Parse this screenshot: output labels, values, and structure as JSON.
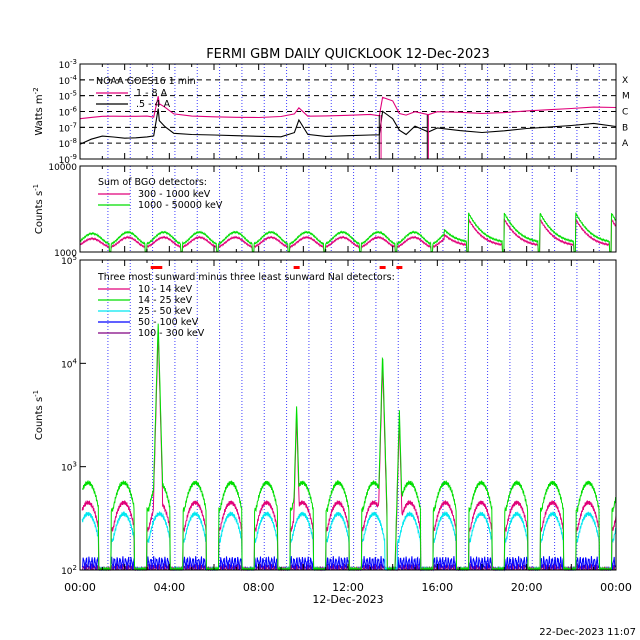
{
  "title": "FERMI GBM DAILY QUICKLOOK   12-Dec-2023",
  "timestamp": "22-Dec-2023 11:07",
  "x_axis": {
    "ticks": [
      "00:00",
      "04:00",
      "08:00",
      "12:00",
      "16:00",
      "20:00",
      "00:00"
    ],
    "tick_hours": [
      0,
      4,
      8,
      12,
      16,
      20,
      24
    ],
    "date_label": "12-Dec-2023",
    "range_hours": [
      0,
      24
    ]
  },
  "colors": {
    "magenta": "#e0007a",
    "green": "#00dd00",
    "cyan": "#00e8f0",
    "blue": "#0000ff",
    "purple": "#800080",
    "red": "#ff0000",
    "black": "#000000",
    "dotted": "#4040ff"
  },
  "chart_data": [
    {
      "type": "line",
      "id": "goes",
      "ylabel": "Watts m",
      "ylabel_sup": "-2",
      "y_scale": "log",
      "ylim": [
        1e-09,
        0.001
      ],
      "y_ticks": [
        {
          "base": "10",
          "exp": "-3"
        },
        {
          "base": "10",
          "exp": "-4"
        },
        {
          "base": "10",
          "exp": "-5"
        },
        {
          "base": "10",
          "exp": "-6"
        },
        {
          "base": "10",
          "exp": "-7"
        },
        {
          "base": "10",
          "exp": "-8"
        },
        {
          "base": "10",
          "exp": "-9"
        }
      ],
      "flare_classes": [
        {
          "label": "X",
          "level": 0.0001
        },
        {
          "label": "M",
          "level": 1e-05
        },
        {
          "label": "C",
          "level": 1e-06
        },
        {
          "label": "B",
          "level": 1e-07
        },
        {
          "label": "A",
          "level": 1e-08
        }
      ],
      "legend_title": "NOAA GOES16 1 min",
      "series": [
        {
          "name": "1 - 8 A",
          "color": "magenta",
          "x": [
            0.0,
            0.5,
            1.0,
            1.5,
            2.0,
            2.5,
            3.0,
            3.3,
            3.5,
            3.55,
            3.8,
            4.2,
            5.0,
            6.0,
            7.0,
            8.0,
            9.0,
            9.6,
            9.8,
            10.2,
            11.0,
            12.0,
            13.0,
            13.4,
            13.55,
            14.0,
            14.3,
            14.6,
            15.0,
            15.6,
            16.0,
            17.0,
            18.0,
            19.0,
            20.0,
            21.0,
            22.0,
            23.0,
            24.0
          ],
          "y": [
            3.5e-07,
            4e-07,
            4.5e-07,
            4.4e-07,
            4.2e-07,
            4.2e-07,
            4.3e-07,
            4.5e-07,
            8e-06,
            3e-06,
            2e-06,
            6e-07,
            5e-07,
            5e-07,
            5e-07,
            5e-07,
            5.5e-07,
            6e-07,
            1.5e-06,
            6e-07,
            5e-07,
            5e-07,
            5.5e-07,
            6e-07,
            8e-06,
            4e-06,
            8e-07,
            7e-07,
            9e-07,
            7e-07,
            1e-06,
            1e-06,
            9e-07,
            1e-06,
            1.2e-06,
            1.3e-06,
            1.4e-06,
            1.6e-06,
            1.5e-06
          ]
        },
        {
          "name": ".5 - 4 A",
          "color": "black",
          "x": [
            0.0,
            0.5,
            1.0,
            1.5,
            2.0,
            2.5,
            3.0,
            3.3,
            3.5,
            3.55,
            3.8,
            4.2,
            5.0,
            6.0,
            7.0,
            8.0,
            9.0,
            9.6,
            9.8,
            10.2,
            11.0,
            12.0,
            13.0,
            13.4,
            13.55,
            14.0,
            14.3,
            14.6,
            15.0,
            15.6,
            16.0,
            17.0,
            18.0,
            19.0,
            20.0,
            21.0,
            22.0,
            23.0,
            24.0
          ],
          "y": [
            1e-08,
            2e-08,
            3e-08,
            2.5e-08,
            2e-08,
            2e-08,
            2.2e-08,
            2.5e-08,
            1.3e-06,
            3e-07,
            1e-07,
            4e-08,
            3e-08,
            3e-08,
            3e-08,
            3e-08,
            3e-08,
            4e-08,
            3e-07,
            4e-08,
            3e-08,
            3e-08,
            3e-08,
            4e-08,
            1.2e-06,
            3e-07,
            6e-08,
            4e-08,
            1e-07,
            6e-08,
            8e-08,
            6e-08,
            5e-08,
            7e-08,
            1e-07,
            1.2e-07,
            1.4e-07,
            1.7e-07,
            1e-07
          ]
        }
      ]
    },
    {
      "type": "line",
      "id": "bgo",
      "ylabel": "Counts s",
      "ylabel_sup": "-1",
      "y_scale": "log",
      "ylim": [
        1000,
        10000
      ],
      "y_ticks": [
        {
          "label": "10000",
          "value": 10000
        },
        {
          "label": "1000",
          "value": 1000
        }
      ],
      "legend_title": "Sum of BGO detectors:",
      "series": [
        {
          "name": "300 - 1000 keV",
          "color": "magenta",
          "base": 1150,
          "peak": 1700
        },
        {
          "name": "1000 - 50000 keV",
          "color": "green",
          "base": 1250,
          "peak": 2000
        }
      ]
    },
    {
      "type": "line",
      "id": "nai",
      "ylabel": "Counts s",
      "ylabel_sup": "-1",
      "y_scale": "log",
      "ylim": [
        100,
        100000
      ],
      "y_ticks": [
        {
          "base": "10",
          "exp": "5",
          "value": 100000
        },
        {
          "base": "10",
          "exp": "4",
          "value": 10000
        },
        {
          "base": "10",
          "exp": "3",
          "value": 1000
        },
        {
          "base": "10",
          "exp": "2",
          "value": 100
        }
      ],
      "legend_title": "Three most sunward minus three least sunward NaI detectors:",
      "series": [
        {
          "name": "10 - 14 keV",
          "color": "magenta",
          "base_peak": 450
        },
        {
          "name": "14 - 25 keV",
          "color": "green",
          "base_peak": 700
        },
        {
          "name": "25 - 50 keV",
          "color": "cyan",
          "base_peak": 350
        },
        {
          "name": "50 - 100 keV",
          "color": "blue",
          "base_peak": 130
        },
        {
          "name": "100 - 300 keV",
          "color": "purple",
          "base_peak": 110
        }
      ],
      "flare_peaks": [
        {
          "hour": 3.5,
          "value": 25000
        },
        {
          "hour": 9.7,
          "value": 4000
        },
        {
          "hour": 13.55,
          "value": 13000
        },
        {
          "hour": 14.3,
          "value": 3500
        }
      ]
    }
  ]
}
